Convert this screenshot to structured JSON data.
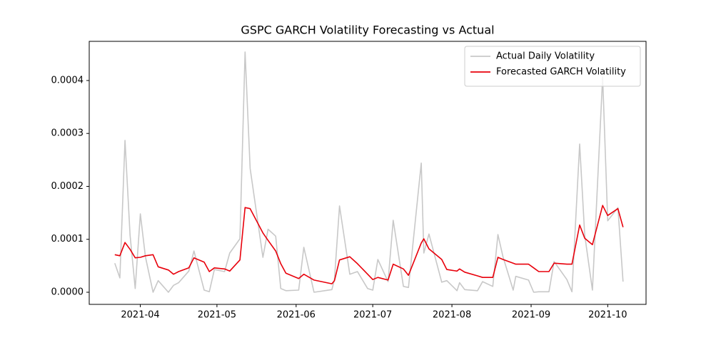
{
  "chart_data": {
    "type": "line",
    "title": "GSPC GARCH Volatility Forecasting vs Actual",
    "x": [
      "2021-03-22",
      "2021-03-24",
      "2021-03-26",
      "2021-03-28",
      "2021-03-30",
      "2021-04-01",
      "2021-04-03",
      "2021-04-06",
      "2021-04-08",
      "2021-04-12",
      "2021-04-14",
      "2021-04-16",
      "2021-04-20",
      "2021-04-22",
      "2021-04-26",
      "2021-04-28",
      "2021-04-30",
      "2021-05-04",
      "2021-05-06",
      "2021-05-10",
      "2021-05-12",
      "2021-05-14",
      "2021-05-19",
      "2021-05-21",
      "2021-05-24",
      "2021-05-26",
      "2021-05-28",
      "2021-06-02",
      "2021-06-04",
      "2021-06-08",
      "2021-06-15",
      "2021-06-16",
      "2021-06-18",
      "2021-06-22",
      "2021-06-25",
      "2021-06-29",
      "2021-07-01",
      "2021-07-03",
      "2021-07-07",
      "2021-07-09",
      "2021-07-13",
      "2021-07-15",
      "2021-07-20",
      "2021-07-21",
      "2021-07-23",
      "2021-07-28",
      "2021-07-30",
      "2021-08-03",
      "2021-08-04",
      "2021-08-06",
      "2021-08-11",
      "2021-08-13",
      "2021-08-17",
      "2021-08-19",
      "2021-08-21",
      "2021-08-25",
      "2021-08-26",
      "2021-08-31",
      "2021-09-02",
      "2021-09-04",
      "2021-09-08",
      "2021-09-10",
      "2021-09-15",
      "2021-09-17",
      "2021-09-20",
      "2021-09-22",
      "2021-09-25",
      "2021-09-29",
      "2021-10-01",
      "2021-10-05",
      "2021-10-07"
    ],
    "series": [
      {
        "name": "Actual Daily Volatility",
        "color": "#c8c8c8",
        "values": [
          5.5e-05,
          2.7e-05,
          0.000287,
          0.000108,
          7e-06,
          0.000148,
          6.7e-05,
          0.0,
          2.2e-05,
          0.0,
          1.3e-05,
          1.8e-05,
          4e-05,
          7.8e-05,
          4e-06,
          1e-06,
          4.3e-05,
          3.9e-05,
          7.4e-05,
          0.000101,
          0.000454,
          0.000234,
          6.6e-05,
          0.000119,
          0.000106,
          7e-06,
          3e-06,
          4e-06,
          8.5e-05,
          0.0,
          5e-06,
          2.4e-05,
          0.000163,
          3.4e-05,
          3.9e-05,
          7e-06,
          4e-06,
          6.2e-05,
          2e-05,
          0.000136,
          1.1e-05,
          9e-06,
          0.000244,
          7.4e-05,
          0.00011,
          1.9e-05,
          2.2e-05,
          3e-06,
          1.8e-05,
          5e-06,
          3e-06,
          2e-05,
          1.1e-05,
          0.000109,
          6.7e-05,
          4e-06,
          3e-05,
          2.3e-05,
          0.0,
          1e-06,
          1e-06,
          5.8e-05,
          2.4e-05,
          1e-06,
          0.00028,
          0.000108,
          4e-06,
          0.000407,
          0.000135,
          0.00016,
          2e-05
        ]
      },
      {
        "name": "Forecasted GARCH Volatility",
        "color": "#e8000b",
        "values": [
          7.1e-05,
          6.9e-05,
          9.4e-05,
          8.1e-05,
          6.5e-05,
          6.6e-05,
          6.9e-05,
          7.1e-05,
          4.8e-05,
          4.2e-05,
          3.4e-05,
          3.9e-05,
          4.6e-05,
          6.5e-05,
          5.7e-05,
          3.9e-05,
          4.6e-05,
          4.4e-05,
          4e-05,
          6.1e-05,
          0.00016,
          0.000158,
          0.000112,
          9.8e-05,
          7.8e-05,
          5.4e-05,
          3.6e-05,
          2.6e-05,
          3.4e-05,
          2.3e-05,
          1.6e-05,
          2.2e-05,
          6.1e-05,
          6.7e-05,
          5.4e-05,
          3.4e-05,
          2.4e-05,
          2.8e-05,
          2.3e-05,
          5.3e-05,
          4.4e-05,
          3.2e-05,
          9.3e-05,
          0.000101,
          8.2e-05,
          6.2e-05,
          4.3e-05,
          4e-05,
          4.4e-05,
          3.8e-05,
          3.1e-05,
          2.8e-05,
          2.8e-05,
          6.6e-05,
          6.2e-05,
          5.5e-05,
          5.3e-05,
          5.3e-05,
          4.6e-05,
          3.9e-05,
          3.9e-05,
          5.5e-05,
          5.3e-05,
          5.3e-05,
          0.000127,
          0.000102,
          9e-05,
          0.000164,
          0.000145,
          0.000158,
          0.000123
        ]
      }
    ],
    "xlim": [
      "2021-03-12",
      "2021-10-16"
    ],
    "xticks": [
      "2021-04",
      "2021-05",
      "2021-06",
      "2021-07",
      "2021-08",
      "2021-09",
      "2021-10"
    ],
    "ylim": [
      -2.29e-05,
      0.000474
    ],
    "yticks": [
      {
        "value": 0,
        "label": "0.0000"
      },
      0.0001,
      0.0002,
      0.0003,
      0.0004
    ],
    "legend": "upper right",
    "grid": false
  }
}
